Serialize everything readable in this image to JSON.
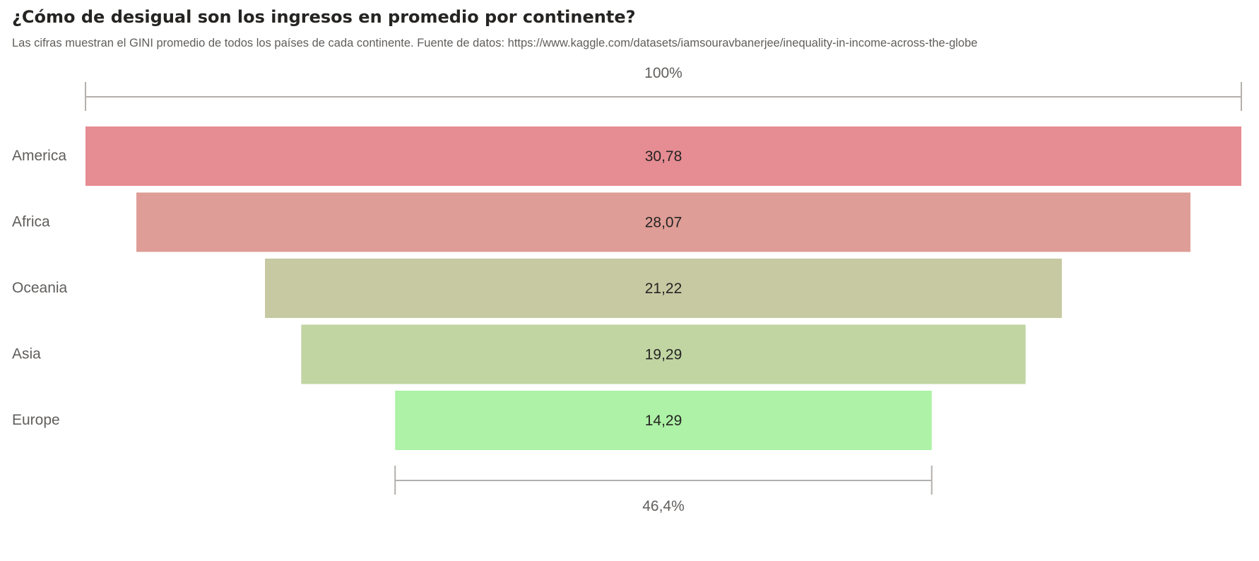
{
  "title": "¿Cómo de desigual son los ingresos en promedio por continente?",
  "subtitle": "Las cifras muestran el GINI promedio de todos los países de cada continente. Fuente de datos: https://www.kaggle.com/datasets/iamsouravbanerjee/inequality-in-income-across-the-globe",
  "chart_data": {
    "type": "funnel",
    "categories": [
      "America",
      "Africa",
      "Oceania",
      "Asia",
      "Europe"
    ],
    "values": [
      30.78,
      28.07,
      21.22,
      19.29,
      14.29
    ],
    "value_labels": [
      "30,78",
      "28,07",
      "21,22",
      "19,29",
      "14,29"
    ],
    "colors": [
      "#e68c93",
      "#de9d96",
      "#c7c9a2",
      "#c1d5a3",
      "#adf2a6"
    ],
    "top_percent_label": "100%",
    "bottom_percent_label": "46,4%"
  }
}
